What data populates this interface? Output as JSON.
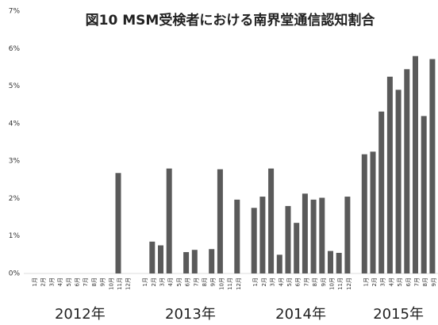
{
  "chart_data": {
    "type": "bar",
    "title": "図10 MSM受検者における南界堂通信認知割合",
    "categories": [
      "1月",
      "2月",
      "3月",
      "4月",
      "5月",
      "6月",
      "7月",
      "8月",
      "9月",
      "10月",
      "11月",
      "12月",
      null,
      "1月",
      "2月",
      "3月",
      "4月",
      "5月",
      "6月",
      "7月",
      "8月",
      "9月",
      "10月",
      "11月",
      "12月",
      null,
      "1月",
      "2月",
      "3月",
      "4月",
      "5月",
      "6月",
      "7月",
      "8月",
      "9月",
      "10月",
      "11月",
      "12月",
      null,
      "1月",
      "2月",
      "3月",
      "4月",
      "5月",
      "6月",
      "7月",
      "8月",
      "9月"
    ],
    "values": [
      null,
      null,
      null,
      null,
      null,
      null,
      null,
      null,
      null,
      null,
      2.68,
      null,
      null,
      null,
      0.85,
      0.75,
      2.8,
      null,
      0.57,
      0.63,
      null,
      0.65,
      2.78,
      null,
      1.97,
      null,
      1.75,
      2.05,
      2.8,
      0.5,
      1.8,
      1.35,
      2.13,
      1.97,
      2.02,
      0.6,
      0.55,
      2.05,
      null,
      3.18,
      3.25,
      4.32,
      5.25,
      4.9,
      5.45,
      5.8,
      4.2,
      5.72
    ],
    "groups": [
      "2012年",
      "2013年",
      "2014年",
      "2015年"
    ],
    "color": "#5a5a5a",
    "ylim": [
      0,
      7
    ],
    "yticks": [
      {
        "value": 0,
        "label": "0%"
      },
      {
        "value": 1,
        "label": "1%"
      },
      {
        "value": 2,
        "label": "2%"
      },
      {
        "value": 3,
        "label": "3%"
      },
      {
        "value": 4,
        "label": "4%"
      },
      {
        "value": 5,
        "label": "5%"
      },
      {
        "value": 6,
        "label": "6%"
      },
      {
        "value": 7,
        "label": "7%"
      }
    ]
  }
}
